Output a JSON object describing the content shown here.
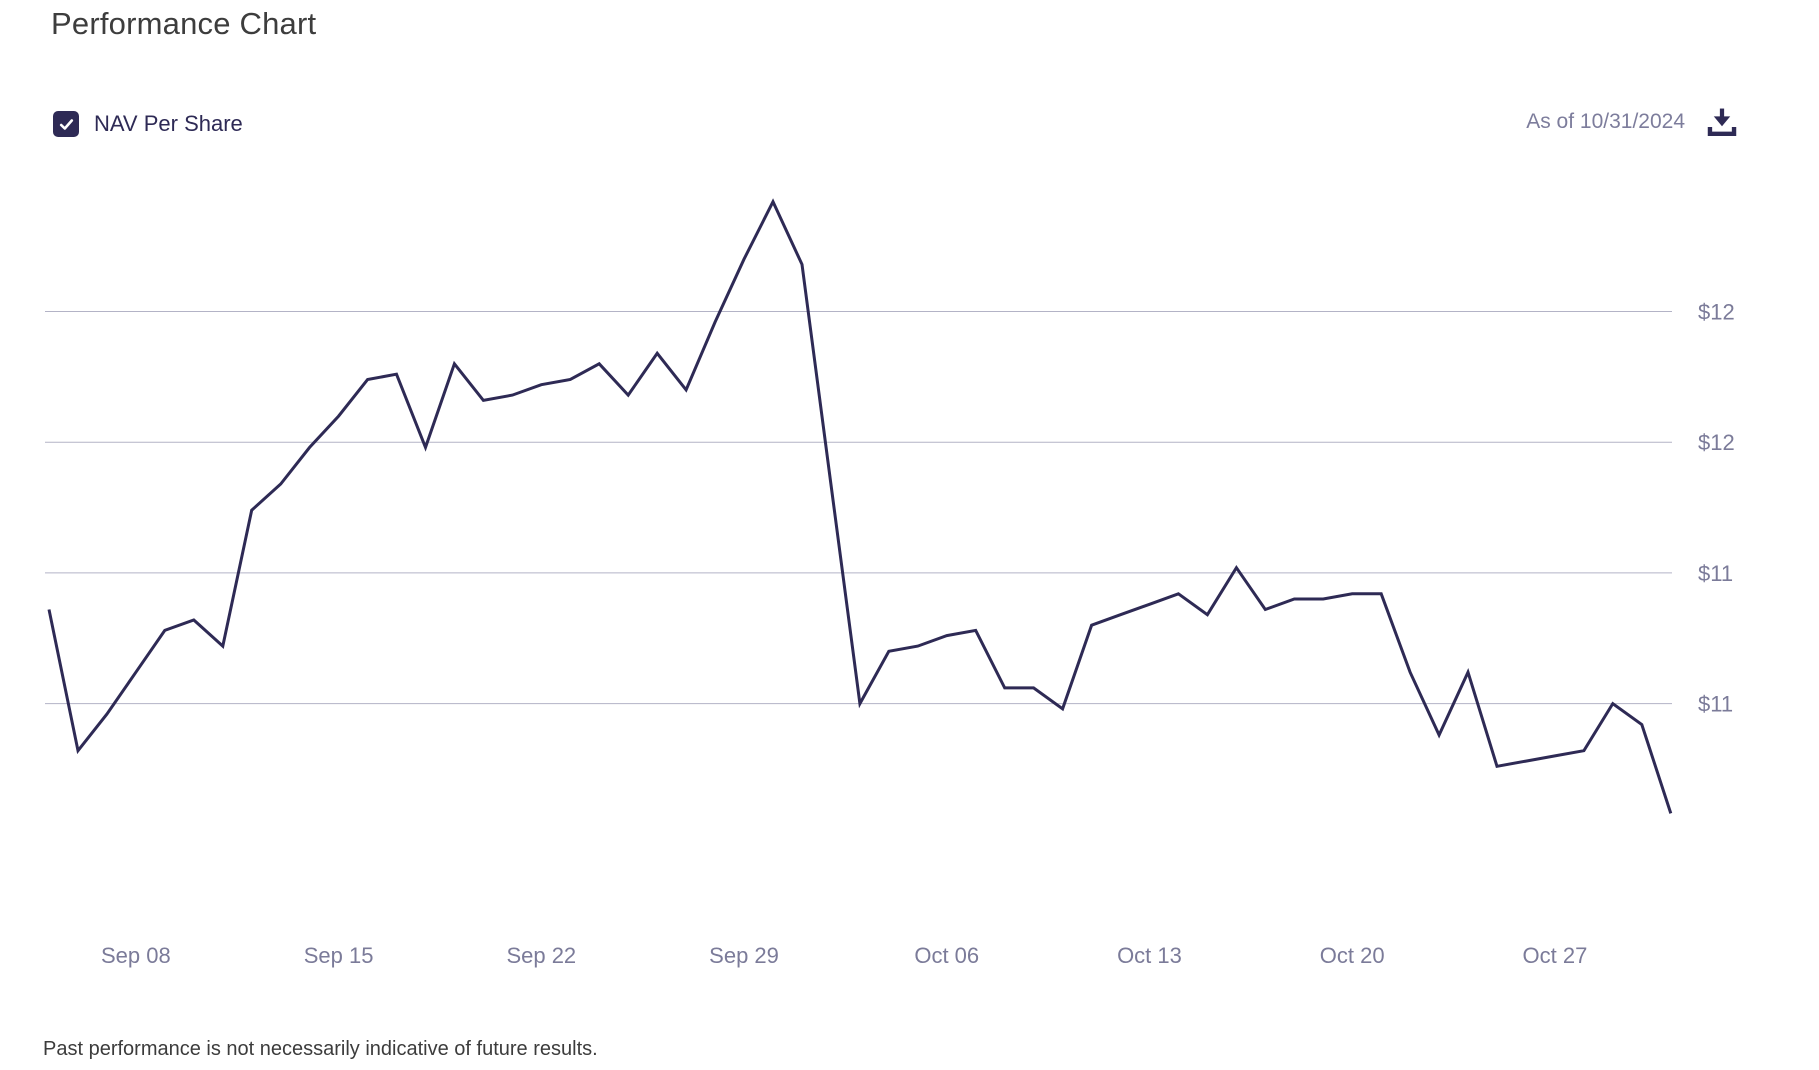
{
  "page": {
    "title": "Performance Chart",
    "as_of": "As of 10/31/2024",
    "disclaimer": "Past performance is not necessarily indicative of future results."
  },
  "legend": {
    "label": "NAV Per Share",
    "checked": true
  },
  "colors": {
    "line": "#2e2a55",
    "accent_navy": "#2e2a55",
    "muted_label": "#7b7b99",
    "gridline": "#b3b3c6",
    "title_text": "#3d3d3d"
  },
  "chart_data": {
    "type": "line",
    "title": "Performance Chart",
    "xlabel": "",
    "ylabel": "",
    "grid": true,
    "legend_position": "top-left",
    "ylim": [
      10.95,
      12.35
    ],
    "y_gridlines": [
      {
        "value": 12.0,
        "label": "$12"
      },
      {
        "value": 11.75,
        "label": "$12"
      },
      {
        "value": 11.5,
        "label": "$11"
      },
      {
        "value": 11.25,
        "label": "$11"
      }
    ],
    "x_tick_labels": [
      "Sep 08",
      "Sep 15",
      "Sep 22",
      "Sep 29",
      "Oct 06",
      "Oct 13",
      "Oct 20",
      "Oct 27"
    ],
    "x_tick_indices": [
      3,
      10,
      17,
      24,
      31,
      38,
      45,
      52
    ],
    "series": [
      {
        "name": "NAV Per Share",
        "color": "#2e2a55",
        "values": [
          11.43,
          11.16,
          11.23,
          11.31,
          11.39,
          11.41,
          11.36,
          11.62,
          11.67,
          11.74,
          11.8,
          11.87,
          11.88,
          11.74,
          11.9,
          11.83,
          11.84,
          11.86,
          11.87,
          11.9,
          11.84,
          11.92,
          11.85,
          11.98,
          12.1,
          12.21,
          12.09,
          11.67,
          11.25,
          11.35,
          11.36,
          11.38,
          11.39,
          11.28,
          11.28,
          11.24,
          11.4,
          11.42,
          11.44,
          11.46,
          11.42,
          11.51,
          11.43,
          11.45,
          11.45,
          11.46,
          11.46,
          11.31,
          11.19,
          11.31,
          11.13,
          11.14,
          11.15,
          11.16,
          11.25,
          11.21,
          11.04
        ]
      }
    ]
  }
}
